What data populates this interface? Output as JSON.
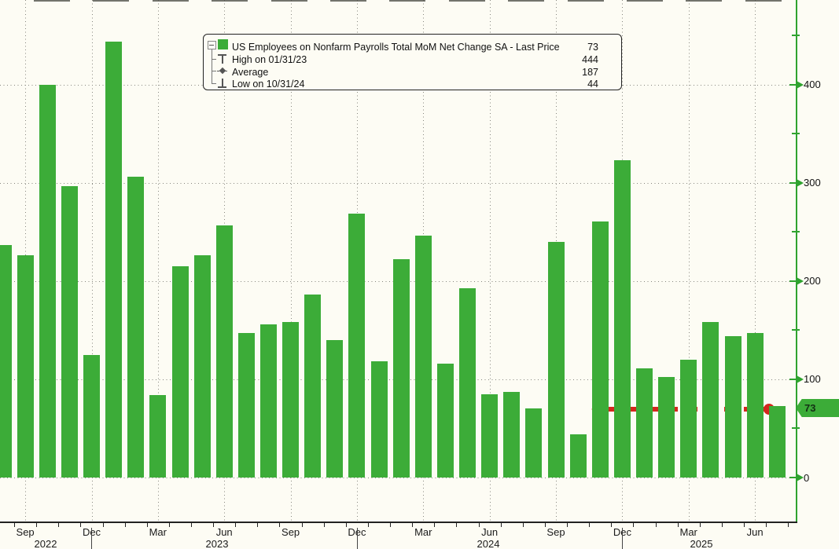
{
  "chart_data": {
    "type": "bar",
    "title": "US Employees on Nonfarm Payrolls Total MoM Net Change SA",
    "categories": [
      "Aug 2022",
      "Sep 2022",
      "Oct 2022",
      "Nov 2022",
      "Dec 2022",
      "Jan 2023",
      "Feb 2023",
      "Mar 2023",
      "Apr 2023",
      "May 2023",
      "Jun 2023",
      "Jul 2023",
      "Aug 2023",
      "Sep 2023",
      "Oct 2023",
      "Nov 2023",
      "Dec 2023",
      "Jan 2024",
      "Feb 2024",
      "Mar 2024",
      "Apr 2024",
      "May 2024",
      "Jun 2024",
      "Jul 2024",
      "Aug 2024",
      "Sep 2024",
      "Oct 2024",
      "Nov 2024",
      "Dec 2024",
      "Jan 2025",
      "Feb 2025",
      "Mar 2025",
      "Apr 2025",
      "May 2025",
      "Jun 2025",
      "Jul 2025"
    ],
    "values": [
      237,
      226,
      400,
      297,
      125,
      444,
      306,
      84,
      215,
      226,
      257,
      147,
      156,
      158,
      186,
      140,
      269,
      118,
      222,
      246,
      116,
      193,
      85,
      87,
      70,
      240,
      44,
      261,
      323,
      111,
      102,
      120,
      158,
      144,
      147,
      73
    ],
    "ylim": [
      0,
      486
    ],
    "yticks": [
      "0",
      "100",
      "200",
      "300",
      "400"
    ],
    "x_quarter_labels": [
      "Sep",
      "Dec",
      "Mar",
      "Jun",
      "Sep",
      "Dec",
      "Mar",
      "Jun",
      "Sep",
      "Dec",
      "Mar",
      "Jun"
    ],
    "x_year_labels": [
      "2022",
      "2023",
      "2024",
      "2025"
    ],
    "grid": "dotted",
    "legend_position": "top-center",
    "bar_color": "#3CAC38",
    "axis_color": "#2FA32F",
    "annotation": {
      "type": "dashed-arrow-pointing-left",
      "color": "#D3281D",
      "at_value": 73
    }
  },
  "legend": {
    "series_label": "US Employees on Nonfarm Payrolls Total MoM Net Change SA - Last Price",
    "series_value": "73",
    "high_label": "High on 01/31/23",
    "high_value": "444",
    "avg_label": "Average",
    "avg_value": "187",
    "low_label": "Low on 10/31/24",
    "low_value": "44"
  },
  "y_axis": {
    "last_price_badge": "73"
  }
}
